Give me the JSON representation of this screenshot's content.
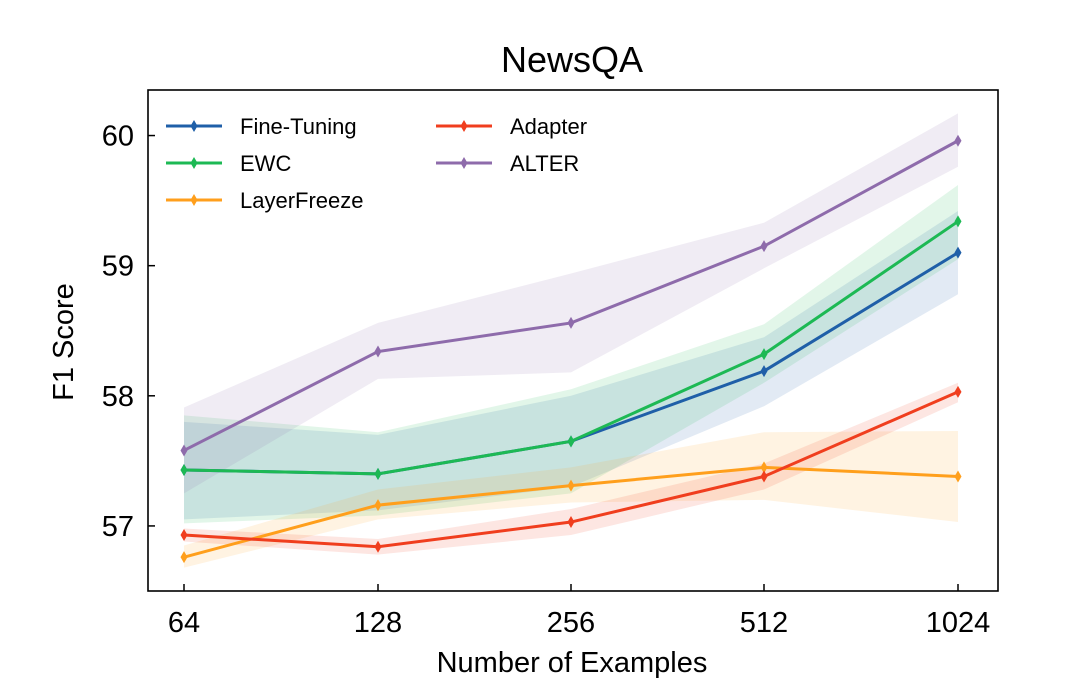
{
  "chart_data": {
    "type": "line",
    "title": "NewsQA",
    "xlabel": "Number of Examples",
    "ylabel": "F1 Score",
    "categories": [
      "64",
      "128",
      "256",
      "512",
      "1024"
    ],
    "ylim": [
      56.5,
      60.35
    ],
    "yticks": [
      57,
      58,
      59,
      60
    ],
    "grid": false,
    "legend_position": "top-left",
    "series": [
      {
        "name": "Fine-Tuning",
        "color": "#1f5fa8",
        "values": [
          57.43,
          57.4,
          57.65,
          58.19,
          59.1
        ],
        "lower": [
          57.05,
          57.12,
          57.3,
          57.92,
          58.78
        ],
        "upper": [
          57.8,
          57.7,
          58.0,
          58.45,
          59.42
        ]
      },
      {
        "name": "EWC",
        "color": "#1db954",
        "values": [
          57.43,
          57.4,
          57.65,
          58.32,
          59.34
        ],
        "lower": [
          57.02,
          57.08,
          57.25,
          58.1,
          59.05
        ],
        "upper": [
          57.85,
          57.72,
          58.05,
          58.55,
          59.62
        ]
      },
      {
        "name": "LayerFreeze",
        "color": "#ff9f1c",
        "values": [
          56.76,
          57.16,
          57.31,
          57.45,
          57.38
        ],
        "lower": [
          56.68,
          57.05,
          57.18,
          57.2,
          57.03
        ],
        "upper": [
          56.85,
          57.28,
          57.45,
          57.72,
          57.73
        ]
      },
      {
        "name": "Adapter",
        "color": "#f03e1e",
        "values": [
          56.93,
          56.84,
          57.03,
          57.38,
          58.03
        ],
        "lower": [
          56.88,
          56.78,
          56.93,
          57.28,
          57.95
        ],
        "upper": [
          56.98,
          56.9,
          57.13,
          57.48,
          58.1
        ]
      },
      {
        "name": "ALTER",
        "color": "#8e6bab",
        "values": [
          57.58,
          58.34,
          58.56,
          59.15,
          59.96
        ],
        "lower": [
          57.25,
          58.13,
          58.18,
          58.98,
          59.76
        ],
        "upper": [
          57.91,
          58.56,
          58.94,
          59.33,
          60.17
        ]
      }
    ]
  }
}
